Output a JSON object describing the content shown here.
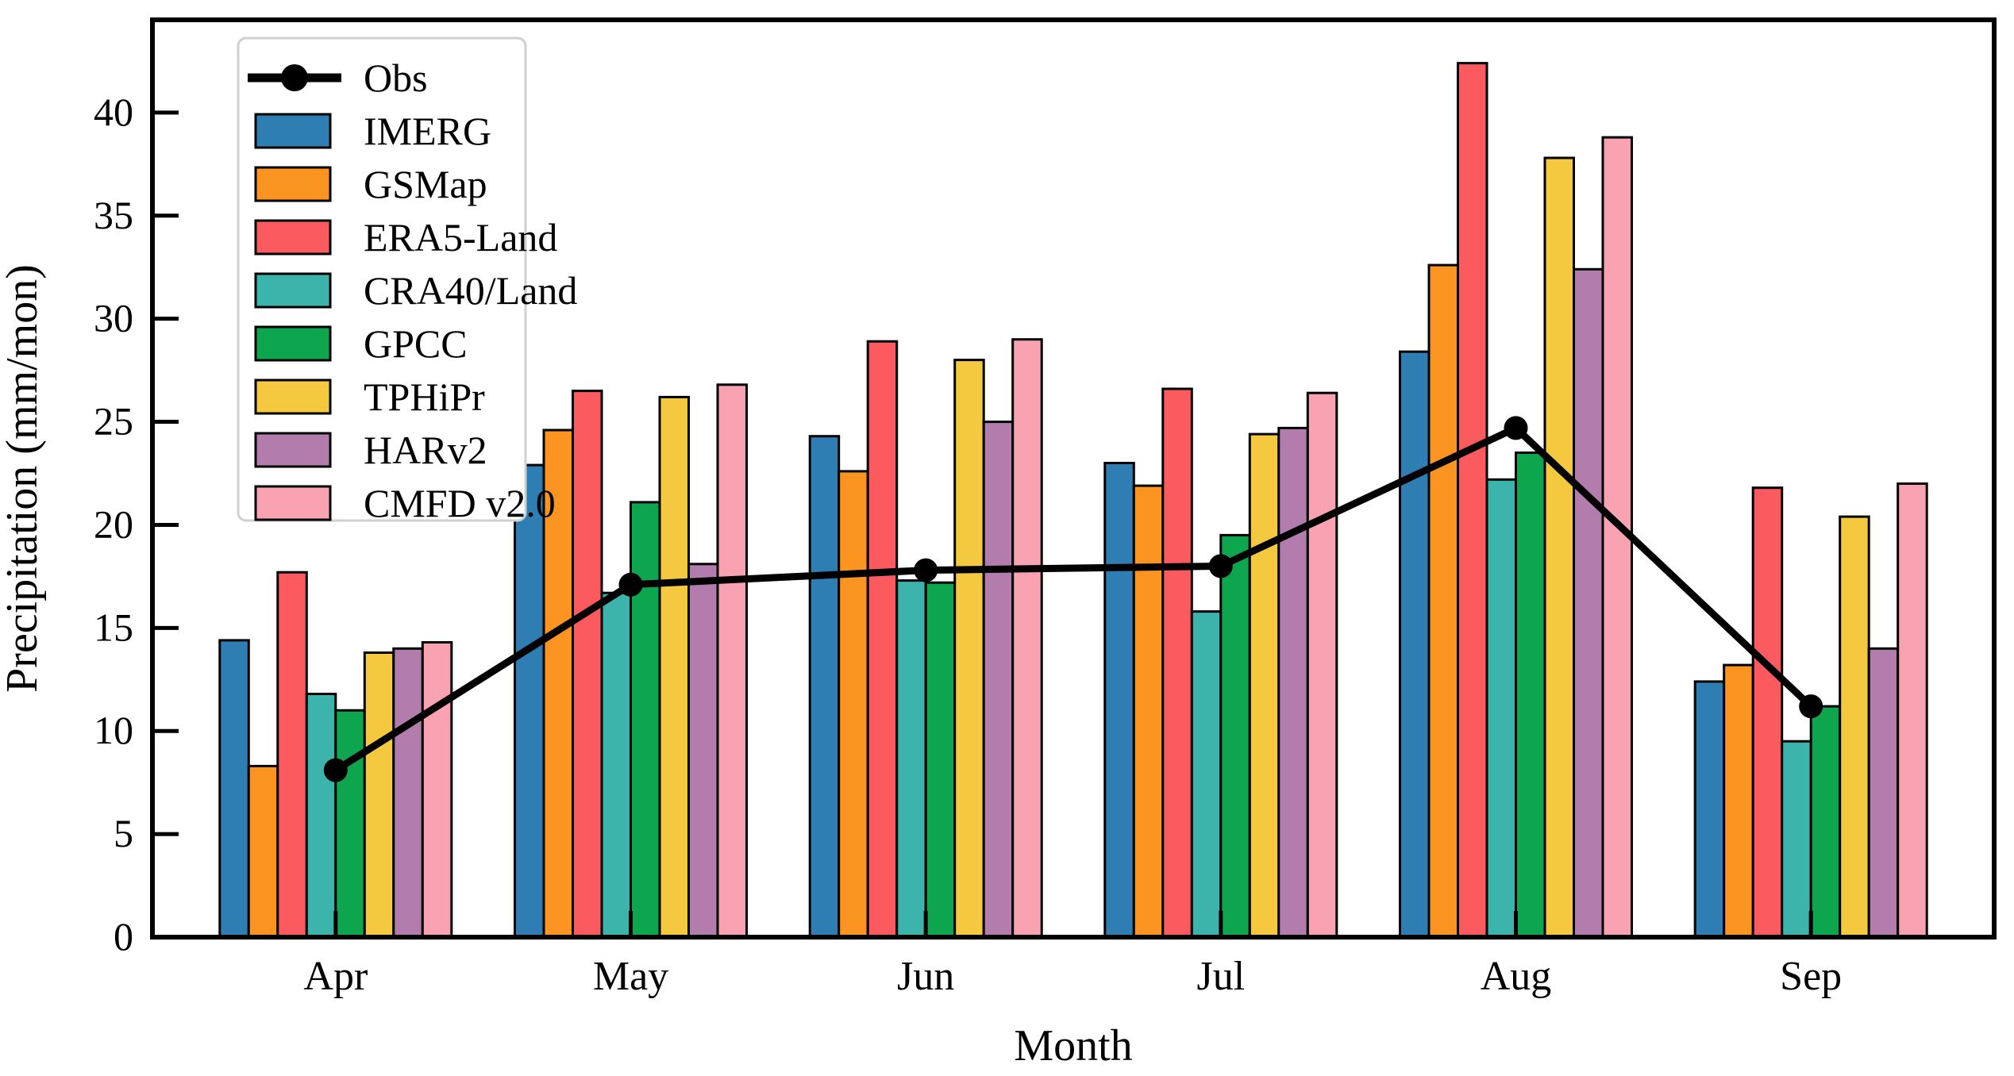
{
  "chart_data": {
    "type": "bar",
    "subtype": "grouped-bars-with-line-overlay",
    "title": "",
    "xlabel": "Month",
    "ylabel": "Precipitation (mm/mon)",
    "categories": [
      "Apr",
      "May",
      "Jun",
      "Jul",
      "Aug",
      "Sep"
    ],
    "ylim": [
      0,
      44.5
    ],
    "y_ticks": [
      0,
      5,
      10,
      15,
      20,
      25,
      30,
      35,
      40
    ],
    "grid": false,
    "legend_position": "upper-left",
    "axis_color": "#000000",
    "legend_border_color": "#cfcfcf",
    "series": [
      {
        "name": "IMERG",
        "type": "bar",
        "color": "#2e7eb3",
        "values": [
          14.4,
          22.9,
          24.3,
          23.0,
          28.4,
          12.4
        ]
      },
      {
        "name": "GSMap",
        "type": "bar",
        "color": "#fb9420",
        "values": [
          8.3,
          24.6,
          22.6,
          21.9,
          32.6,
          13.2
        ]
      },
      {
        "name": "ERA5-Land",
        "type": "bar",
        "color": "#fb5b5e",
        "values": [
          17.7,
          26.5,
          28.9,
          26.6,
          42.4,
          21.8
        ]
      },
      {
        "name": "CRA40/Land",
        "type": "bar",
        "color": "#3cb4ac",
        "values": [
          11.8,
          16.7,
          17.3,
          15.8,
          22.2,
          9.5
        ]
      },
      {
        "name": "GPCC",
        "type": "bar",
        "color": "#0da64f",
        "values": [
          11.0,
          21.1,
          17.2,
          19.5,
          23.5,
          11.2
        ]
      },
      {
        "name": "TPHiPr",
        "type": "bar",
        "color": "#f4c83f",
        "values": [
          13.8,
          26.2,
          28.0,
          24.4,
          37.8,
          20.4
        ]
      },
      {
        "name": "HARv2",
        "type": "bar",
        "color": "#b27cac",
        "values": [
          14.0,
          18.1,
          25.0,
          24.7,
          32.4,
          14.0
        ]
      },
      {
        "name": "CMFD v2.0",
        "type": "bar",
        "color": "#f9a3b2",
        "values": [
          14.3,
          26.8,
          29.0,
          26.4,
          38.8,
          22.0
        ]
      }
    ],
    "obs": {
      "name": "Obs",
      "type": "line",
      "color": "#000000",
      "values": [
        8.1,
        17.1,
        17.8,
        18.0,
        24.7,
        11.2
      ]
    }
  }
}
